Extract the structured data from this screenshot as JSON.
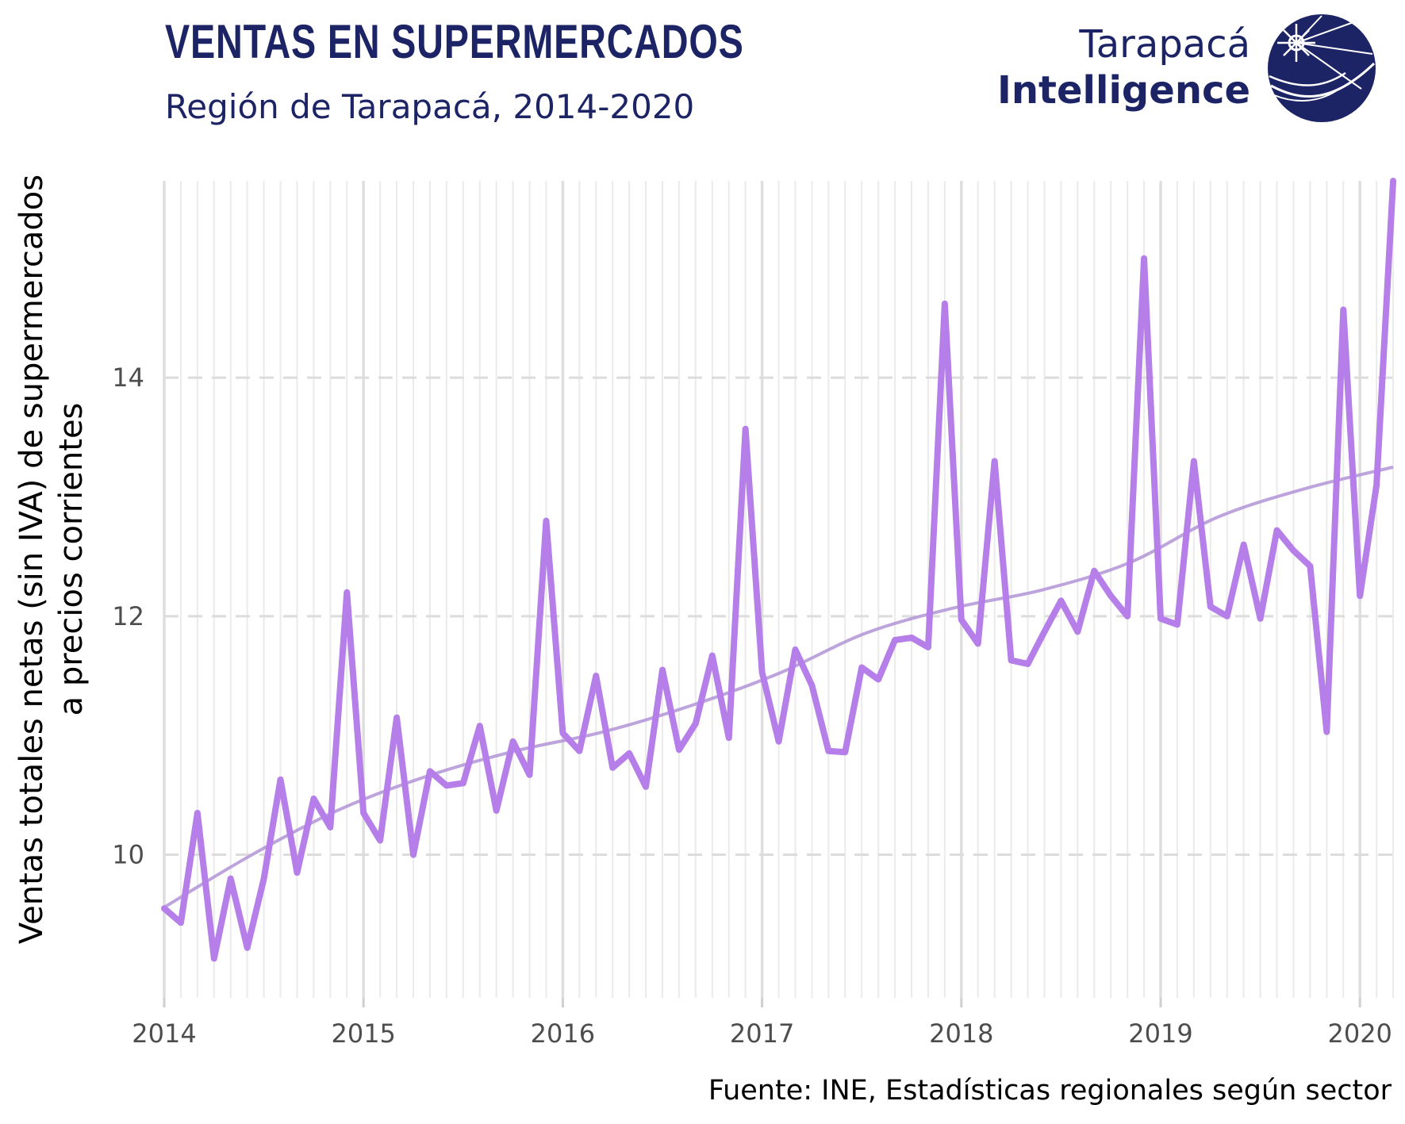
{
  "header": {
    "title": "VENTAS EN SUPERMERCADOS",
    "subtitle": "Región de Tarapacá, 2014-2020"
  },
  "logo": {
    "line1": "Tarapacá",
    "line2": "Intelligence",
    "color": "#1c2466"
  },
  "source": "Fuente: INE, Estadísticas regionales según sector",
  "chart_data": {
    "type": "line",
    "ylabel_line1": "Ventas totales netas (sin IVA) de supermercados",
    "ylabel_line2": "a precios corrientes",
    "xlabel": "",
    "x_start": "2014-01",
    "x_ticks": [
      "2014",
      "2015",
      "2016",
      "2017",
      "2018",
      "2019",
      "2020"
    ],
    "y_ticks": [
      10,
      12,
      14
    ],
    "ylim": [
      8.8,
      15.65
    ],
    "grid": true,
    "line_color": "#b57ee8",
    "trend_color": "#b294d6",
    "series": [
      {
        "values": [
          9.55,
          9.43,
          10.35,
          9.13,
          9.8,
          9.22,
          9.8,
          10.63,
          9.85,
          10.47,
          10.23,
          12.2,
          10.35,
          10.12,
          11.15,
          10.0,
          10.7,
          10.58,
          10.6,
          11.08,
          10.37,
          10.95,
          10.67,
          12.8,
          11.02,
          10.87,
          11.5,
          10.73,
          10.85,
          10.57,
          11.55,
          10.88,
          11.1,
          11.67,
          10.98,
          13.57,
          11.53,
          10.95,
          11.72,
          11.42,
          10.87,
          10.86,
          11.57,
          11.47,
          11.8,
          11.82,
          11.74,
          14.62,
          11.97,
          11.77,
          13.3,
          11.63,
          11.6,
          11.87,
          12.13,
          11.87,
          12.38,
          12.17,
          12.0,
          15.0,
          11.98,
          11.93,
          13.3,
          12.08,
          12.0,
          12.6,
          11.98,
          12.72,
          12.55,
          12.42,
          11.03,
          14.57,
          12.17,
          13.1,
          15.65
        ]
      }
    ],
    "trend": {
      "values": [
        9.56,
        10.0,
        10.38,
        10.66,
        10.87,
        11.03,
        11.25,
        11.52,
        11.86,
        12.07,
        12.22,
        12.45,
        12.83,
        13.07,
        13.25
      ]
    }
  }
}
